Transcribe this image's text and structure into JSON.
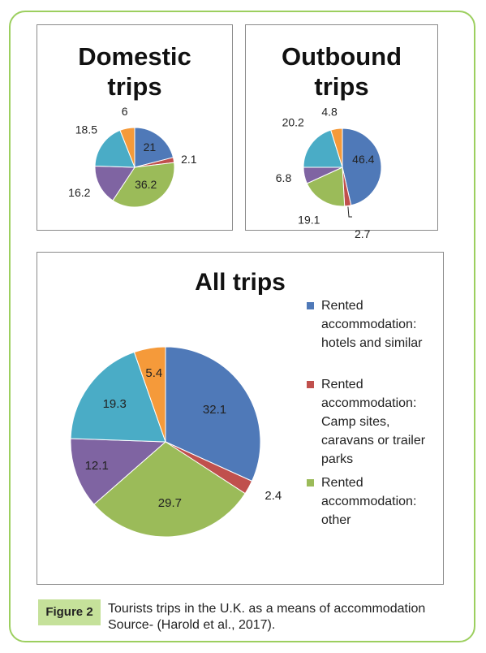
{
  "colors": {
    "hotels": "#4f79b8",
    "camp": "#c0504d",
    "other": "#9bbb59",
    "purple": "#7f64a2",
    "teal": "#4aacc6",
    "orange": "#f59a3a",
    "frame": "#9ccf5f",
    "figure_label_bg": "#c5e19a"
  },
  "figure": {
    "label": "Figure 2",
    "caption_line1": "Tourists trips in the U.K. as a means of accommodation",
    "caption_line2": "Source- (Harold et al., 2017)."
  },
  "chart_data": [
    {
      "type": "pie",
      "title": "Domestic\ntrips",
      "values": [
        21,
        2.1,
        36.2,
        16.2,
        18.5,
        6
      ],
      "labels": [
        "21",
        "2.1",
        "36.2",
        "16.2",
        "18.5",
        "6"
      ]
    },
    {
      "type": "pie",
      "title": "Outbound\ntrips",
      "values": [
        46.4,
        2.7,
        19.1,
        6.8,
        20.2,
        4.8
      ],
      "labels": [
        "46.4",
        "2.7",
        "19.1",
        "6.8",
        "20.2",
        "4.8"
      ]
    },
    {
      "type": "pie",
      "title": "All trips",
      "values": [
        32.1,
        2.4,
        29.7,
        12.1,
        19.3,
        5.4
      ],
      "labels": [
        "32.1",
        "2.4",
        "29.7",
        "12.1",
        "19.3",
        "5.4"
      ],
      "legend_position": "right",
      "legend": [
        "Rented accommodation: hotels and similar",
        "Rented accommodation: Camp sites, caravans or trailer parks",
        "Rented accommodation: other"
      ]
    }
  ]
}
